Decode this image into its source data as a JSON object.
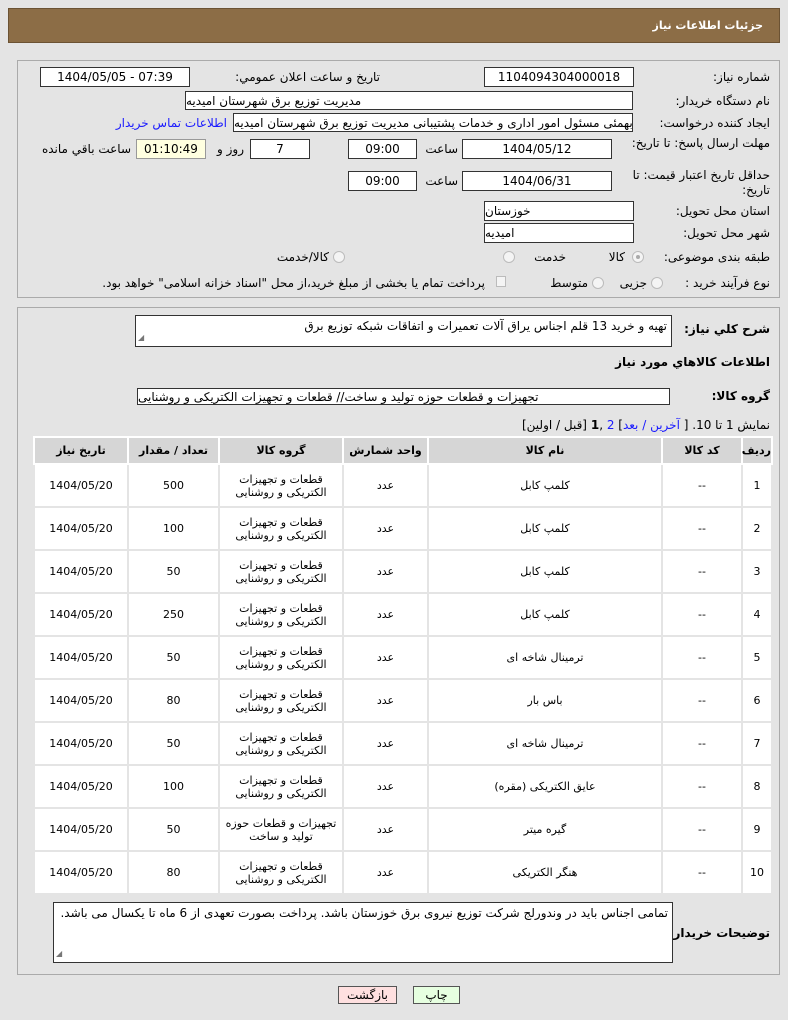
{
  "header": {
    "title": "جزئیات اطلاعات نیاز"
  },
  "form": {
    "need_number_label": "شماره نیاز:",
    "need_number": "1104094304000018",
    "announce_label": "تاریخ و ساعت اعلان عمومي:",
    "announce_value": "1404/05/05 - 07:39",
    "buyer_label": "نام دستگاه خریدار:",
    "buyer_value": "مدیریت توزیع برق شهرستان امیدیه",
    "creator_label": "ایجاد کننده درخواست:",
    "creator_value": "محسن بهمئی مسئول امور اداری و خدمات پشتیبانی مدیریت توزیع برق شهرستان امیدیه",
    "contact_link": "اطلاعات تماس خریدار",
    "deadline_label": "مهلت ارسال پاسخ: تا تاریخ:",
    "deadline_date": "1404/05/12",
    "time_label": "ساعت",
    "deadline_time": "09:00",
    "days": "7",
    "days_label": "روز و",
    "remaining": "01:10:49",
    "remaining_label": "ساعت باقي مانده",
    "validity_label": "حداقل تاریخ اعتبار قیمت: تا تاریخ:",
    "validity_date": "1404/06/31",
    "validity_time": "09:00",
    "province_label": "استان محل تحویل:",
    "province": "خوزستان",
    "city_label": "شهر محل تحویل:",
    "city": "امیدیه",
    "category_label": "طبقه بندی موضوعی:",
    "category_options": [
      "کالا",
      "خدمت",
      "کالا/خدمت"
    ],
    "category_selected": "کالا",
    "process_label": "نوع فرآیند خرید :",
    "process_options": [
      "جزیی",
      "متوسط"
    ],
    "payment_note": "پرداخت تمام یا بخشی از مبلغ خرید،از محل \"اسناد خزانه اسلامی\" خواهد بود."
  },
  "details": {
    "desc_label": "شرح كلي نياز:",
    "desc": "تهیه و خرید 13 قلم اجناس یراق آلات تعمیرات و اتفاقات شبکه توزیع برق",
    "items_title": "اطلاعات كالاهاي مورد نياز",
    "group_label": "گروه کالا:",
    "group_value": "تجهیزات و قطعات حوزه تولید و ساخت// قطعات و تجهیزات الکتریکی و روشنایی",
    "pagination": {
      "prefix": "نمایش 1 تا 10. [",
      "last_next": "آخرین / بعد",
      "pages_link": "2",
      "current": "1",
      "suffix": "[قبل / اولین]"
    },
    "columns": [
      "ردیف",
      "کد کالا",
      "نام کالا",
      "واحد شمارش",
      "گروه کالا",
      "تعداد / مقدار",
      "تاریخ نیاز"
    ],
    "rows": [
      [
        "1",
        "--",
        "کلمپ کابل",
        "عدد",
        "قطعات و تجهیزات الکتریکی و روشنایی",
        "500",
        "1404/05/20"
      ],
      [
        "2",
        "--",
        "کلمپ کابل",
        "عدد",
        "قطعات و تجهیزات الکتریکی و روشنایی",
        "100",
        "1404/05/20"
      ],
      [
        "3",
        "--",
        "کلمپ کابل",
        "عدد",
        "قطعات و تجهیزات الکتریکی و روشنایی",
        "50",
        "1404/05/20"
      ],
      [
        "4",
        "--",
        "کلمپ کابل",
        "عدد",
        "قطعات و تجهیزات الکتریکی و روشنایی",
        "250",
        "1404/05/20"
      ],
      [
        "5",
        "--",
        "ترمینال شاخه ای",
        "عدد",
        "قطعات و تجهیزات الکتریکی و روشنایی",
        "50",
        "1404/05/20"
      ],
      [
        "6",
        "--",
        "باس بار",
        "عدد",
        "قطعات و تجهیزات الکتریکی و روشنایی",
        "80",
        "1404/05/20"
      ],
      [
        "7",
        "--",
        "ترمینال شاخه ای",
        "عدد",
        "قطعات و تجهیزات الکتریکی و روشنایی",
        "50",
        "1404/05/20"
      ],
      [
        "8",
        "--",
        "عایق الکتریکی (مقره)",
        "عدد",
        "قطعات و تجهیزات الکتریکی و روشنایی",
        "100",
        "1404/05/20"
      ],
      [
        "9",
        "--",
        "گیره میتر",
        "عدد",
        "تجهیزات و قطعات حوزه تولید و ساخت",
        "50",
        "1404/05/20"
      ],
      [
        "10",
        "--",
        "هنگر الکتریکی",
        "عدد",
        "قطعات و تجهیزات الکتریکی و روشنایی",
        "80",
        "1404/05/20"
      ]
    ],
    "notes_label": "توضیحات خریدار:",
    "notes": "تمامی اجناس باید در وندورلج شرکت توزیع نیروی برق خوزستان باشد. پرداخت بصورت تعهدی از 6 ماه تا یکسال می باشد."
  },
  "buttons": {
    "print": "چاپ",
    "back": "بازگشت"
  },
  "colors": {
    "header": "#8c6d46",
    "link": "#1a1aff",
    "remaining_bg": "#ffffe0",
    "print_bg": "#e6ffe0",
    "back_bg": "#ffe0e0"
  }
}
